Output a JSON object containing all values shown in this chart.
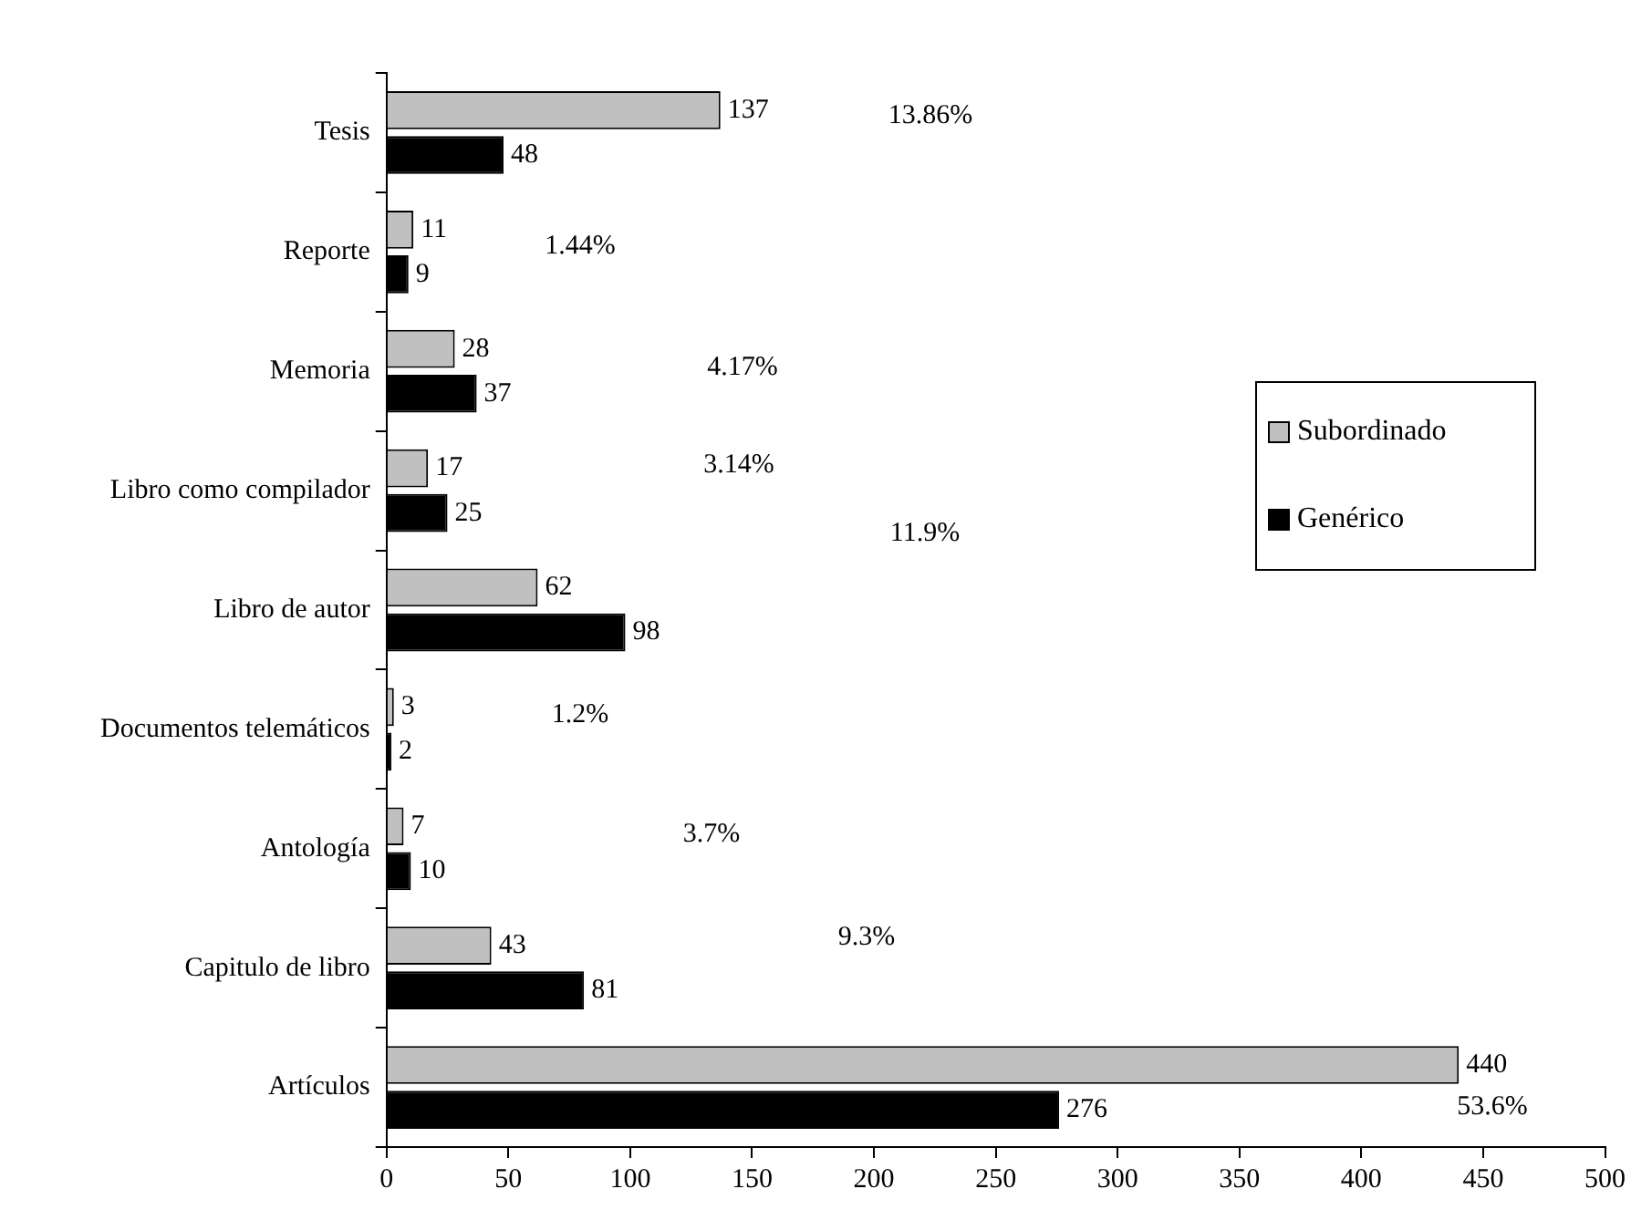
{
  "chart_data": {
    "type": "bar",
    "orientation": "horizontal",
    "categories": [
      "Tesis",
      "Reporte",
      "Memoria",
      "Libro como compilador",
      "Libro de autor",
      "Documentos telemáticos",
      "Antología",
      "Capitulo de libro",
      "Artículos"
    ],
    "series": [
      {
        "name": "Subordinado",
        "color": "#c0c0c0",
        "values": [
          137,
          11,
          28,
          17,
          62,
          3,
          7,
          43,
          440
        ]
      },
      {
        "name": "Genérico",
        "color": "#000000",
        "values": [
          48,
          9,
          37,
          25,
          98,
          2,
          10,
          81,
          276
        ]
      }
    ],
    "xlim": [
      0,
      500
    ],
    "xticks": [
      0,
      50,
      100,
      150,
      200,
      250,
      300,
      350,
      400,
      450,
      500
    ],
    "data_labels": true,
    "grid": false,
    "legend": "right",
    "annotations": [
      "13.86%",
      "1.44%",
      "4.17%",
      "3.14%",
      "11.9%",
      "1.2%",
      "3.7%",
      "9.3%",
      "53.6%"
    ]
  }
}
